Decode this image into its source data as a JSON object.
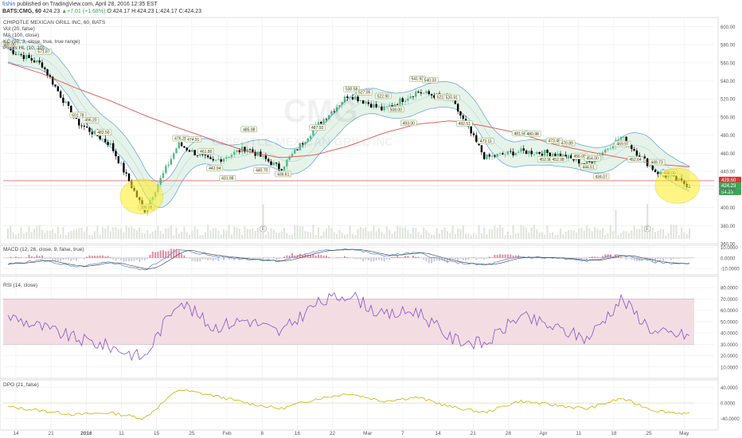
{
  "header": {
    "author": "fishin",
    "published": " published on TradingView.com, April 28, 2016 12:35 EST",
    "symbol": "BATS:CMG, 60",
    "last": " 424.23 ",
    "change": "▲+7.01 (+1.68%)",
    "o": " O:424.17 ",
    "h": "H:424.23 ",
    "l": "L:424.17 ",
    "c": "C:424.23"
  },
  "main_panel": {
    "title": "CHIPOTLE MEXICAN GRILL INC, 60, BATS",
    "indicators": [
      "Vol (20, false)",
      "MA (100, close)",
      "KC (20, 3, close, true, true range)",
      "Pivots HL (10, 10)"
    ],
    "watermark_symbol": "CMG",
    "watermark_name": "CHIPOTLE MEXICAN GRILL INC"
  },
  "macd_panel": {
    "title": "MACD (12, 26, close, 9, false, true)"
  },
  "rsi_panel": {
    "title": "RSI (14, close)"
  },
  "dpo_panel": {
    "title": "DPO (21, false)"
  },
  "earnings_marker": "E",
  "colors": {
    "candle_up": "#53b987",
    "candle_down": "#000000",
    "channel_line": "#6fa8dc",
    "channel_fill": "#e0f0e4",
    "ma_line": "#e0534a",
    "macd_line": "#5b8fd0",
    "signal_line": "#333333",
    "rsi_line": "#8b4fc2",
    "rsi_band": "#f3dde3",
    "dpo_line": "#c8b400",
    "highlight": "#ffee22",
    "price_label_red": "#e03434",
    "price_label_green": "#3da55a"
  },
  "chart_data": [
    {
      "type": "line",
      "title": "CHIPOTLE MEXICAN GRILL INC, 60, BATS",
      "x": [
        "Dec 14",
        "Dec 21",
        "Dec 28",
        "2016",
        "Jan 11",
        "Jan 15",
        "Jan 25",
        "Feb",
        "Feb 8",
        "Feb 16",
        "Feb 22",
        "Mar",
        "Mar 7",
        "Mar 14",
        "Mar 21",
        "Mar 28",
        "Apr",
        "Apr 11",
        "Apr 18",
        "Apr 25",
        "Apr 28"
      ],
      "series": [
        {
          "name": "",
          "values": [
            575,
            558,
            495,
            470,
            396,
            470,
            450,
            466,
            443,
            488,
            525,
            508,
            528,
            520,
            455,
            462,
            460,
            448,
            478,
            440,
            424.23
          ]
        }
      ],
      "ma_values": [
        560,
        548,
        532,
        518,
        502,
        488,
        475,
        462,
        455,
        458,
        468,
        482,
        492,
        496,
        490,
        482,
        470,
        462,
        455,
        448,
        445
      ],
      "pivot_labels": [
        {
          "x": "Dec 14",
          "label": "580.00"
        },
        {
          "x": "Dec 21",
          "label": "571.87"
        },
        {
          "x": "Dec 28",
          "label": "501.78"
        },
        {
          "x": "Dec 28",
          "label": "496.20"
        },
        {
          "x": "Dec 28",
          "label": "482.50"
        },
        {
          "x": "Jan 11",
          "label": "399.98"
        },
        {
          "x": "Jan 15",
          "label": "476.20"
        },
        {
          "x": "Jan 15",
          "label": "474.91"
        },
        {
          "x": "Jan 15",
          "label": "461.80"
        },
        {
          "x": "Jan 25",
          "label": "442.94"
        },
        {
          "x": "Jan 25",
          "label": "431.98"
        },
        {
          "x": "Feb",
          "label": "485.98"
        },
        {
          "x": "Feb",
          "label": "440.70"
        },
        {
          "x": "Feb 8",
          "label": "436.61"
        },
        {
          "x": "Feb 16",
          "label": "487.93"
        },
        {
          "x": "Feb 22",
          "label": "530.58"
        },
        {
          "x": "Feb 22",
          "label": "527.05"
        },
        {
          "x": "Mar",
          "label": "522.90"
        },
        {
          "x": "Mar",
          "label": "508.00"
        },
        {
          "x": "Mar",
          "label": "493.00"
        },
        {
          "x": "Mar 7",
          "label": "541.93"
        },
        {
          "x": "Mar 7",
          "label": "540.33"
        },
        {
          "x": "Mar 7",
          "label": "521.95"
        },
        {
          "x": "Mar 14",
          "label": "520.91"
        },
        {
          "x": "Mar 14",
          "label": "492.51"
        },
        {
          "x": "Mar 21",
          "label": "473.11"
        },
        {
          "x": "Mar 28",
          "label": "481.56"
        },
        {
          "x": "Mar 28",
          "label": "480.98"
        },
        {
          "x": "Mar 28",
          "label": "452.98"
        },
        {
          "x": "Mar 28",
          "label": "452.98"
        },
        {
          "x": "Apr",
          "label": "473.45"
        },
        {
          "x": "Apr",
          "label": "470.89"
        },
        {
          "x": "Apr",
          "label": "456.09"
        },
        {
          "x": "Apr",
          "label": "454.00"
        },
        {
          "x": "Apr 11",
          "label": "444.51"
        },
        {
          "x": "Apr 11",
          "label": "434.07"
        },
        {
          "x": "Apr 18",
          "label": "469.97"
        },
        {
          "x": "Apr 18",
          "label": "452.64"
        },
        {
          "x": "Apr 25",
          "label": "449.73"
        },
        {
          "x": "Apr 25",
          "label": "438.00"
        }
      ],
      "horizontal_line": 429.6,
      "price_labels": [
        "429.60",
        "424.23",
        "54.23"
      ],
      "ylim": [
        360,
        610
      ],
      "y_ticks": [
        360,
        380,
        400,
        420,
        440,
        460,
        480,
        500,
        520,
        540,
        560,
        580,
        600
      ],
      "y_tick_labels": [
        "360.00",
        "380.00",
        "400.00",
        "420.00",
        "440.00",
        "460.00",
        "480.00",
        "500.00",
        "520.00",
        "540.00",
        "560.00",
        "580.00",
        "600.00"
      ],
      "x_tick_labels": [
        "14",
        "21",
        "2016",
        "11",
        "15",
        "25",
        "Feb",
        "8",
        "16",
        "22",
        "Mar",
        "7",
        "14",
        "21",
        "28",
        "Apr",
        "11",
        "18",
        "25",
        "May"
      ],
      "highlights": [
        "Jan 11 low",
        "Apr 28 low"
      ],
      "grid": true
    },
    {
      "type": "line",
      "title": "MACD (12, 26, close, 9, false, true)",
      "series": [
        {
          "name": "",
          "values": [
            -6,
            -2,
            -9,
            -4,
            -12,
            8,
            2,
            -1,
            -3,
            6,
            9,
            2,
            5,
            -4,
            -7,
            1,
            0,
            -3,
            3,
            -4,
            -6
          ]
        }
      ],
      "ylim": [
        -16,
        12
      ],
      "y_tick_labels": [
        "10.0000",
        "0.0000",
        "-10.0000"
      ]
    },
    {
      "type": "line",
      "title": "RSI (14, close)",
      "series": [
        {
          "name": "",
          "values": [
            55,
            45,
            35,
            28,
            18,
            70,
            45,
            52,
            40,
            65,
            75,
            55,
            60,
            35,
            30,
            55,
            45,
            35,
            70,
            40,
            38
          ]
        }
      ],
      "ylim": [
        0,
        90
      ],
      "band": [
        30,
        70
      ],
      "y_tick_labels": [
        "80.0000",
        "70.0000",
        "60.0000",
        "50.0000",
        "40.0000",
        "30.0000",
        "20.0000",
        "10.0000"
      ]
    },
    {
      "type": "line",
      "title": "DPO (21, false)",
      "series": [
        {
          "name": "",
          "values": [
            -10,
            -20,
            -30,
            -25,
            -40,
            35,
            20,
            0,
            -15,
            10,
            25,
            5,
            15,
            -10,
            -25,
            5,
            -5,
            -15,
            12,
            -20,
            -28
          ]
        }
      ],
      "ylim": [
        -70,
        60
      ],
      "y_tick_labels": [
        "40.0000",
        "0.0000",
        "-40.0000"
      ]
    }
  ]
}
